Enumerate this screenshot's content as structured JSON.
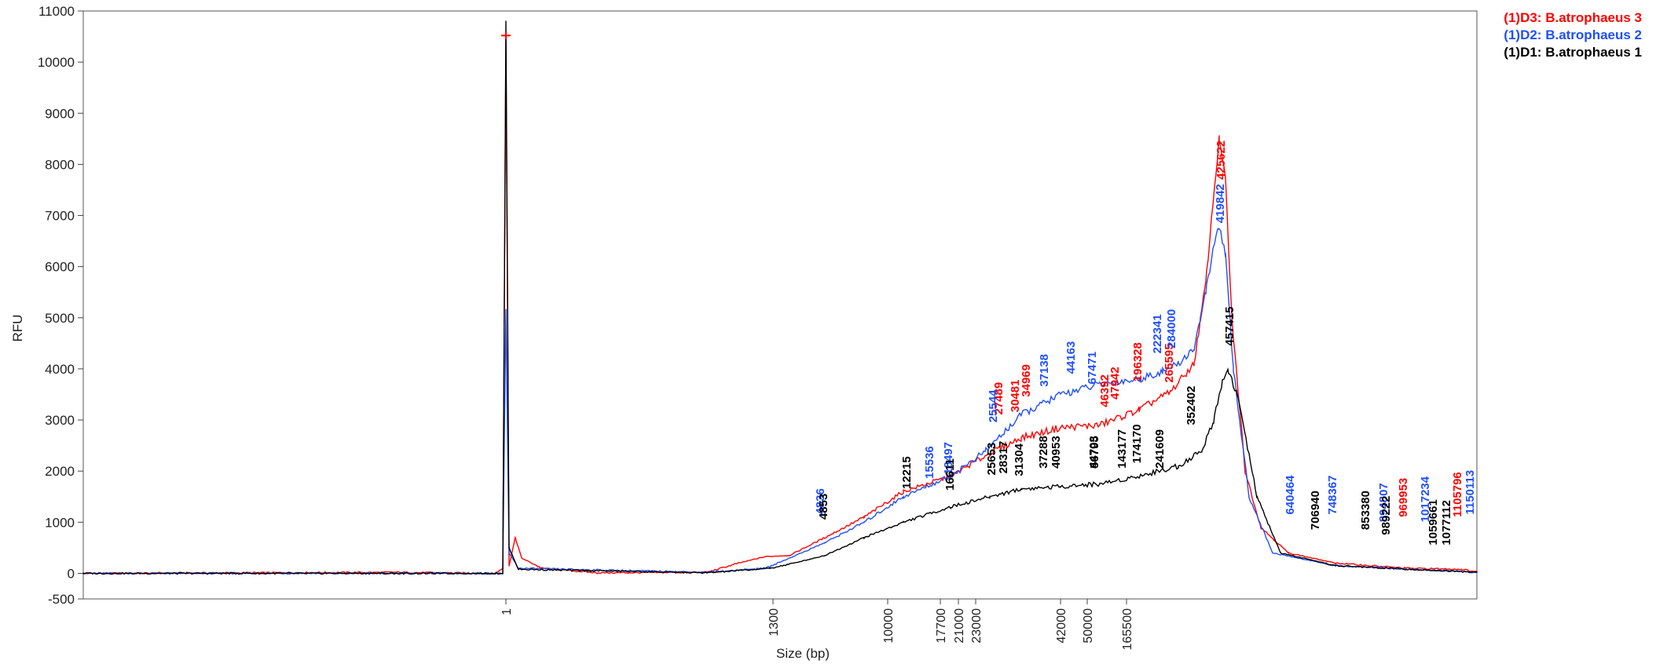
{
  "chart_data": {
    "type": "line",
    "title": "",
    "xlabel": "Size (bp)",
    "ylabel": "RFU",
    "ylim": [
      -500,
      11000
    ],
    "yticks": [
      -500,
      0,
      1000,
      2000,
      3000,
      4000,
      5000,
      6000,
      7000,
      8000,
      9000,
      10000,
      11000
    ],
    "grid": false,
    "legend_position": "top-right",
    "x_tick_labels": [
      "1",
      "1300",
      "10000",
      "17700",
      "21000",
      "23000",
      "42000",
      "50000",
      "165500"
    ],
    "series": [
      {
        "name": "(1)D3: B.atrophaeus 3",
        "color": "#ff0000",
        "peak_labels": [
          "425622",
          "27489",
          "30481",
          "34969",
          "46392",
          "47942",
          "196328",
          "265595",
          "969953",
          "1105796"
        ]
      },
      {
        "name": "(1)D2: B.atrophaeus 2",
        "color": "#1f4fff",
        "peak_labels": [
          "4836",
          "15536",
          "18497",
          "25544",
          "37138",
          "44163",
          "67471",
          "222341",
          "284000",
          "419842",
          "640464",
          "748367",
          "894807",
          "1017234",
          "1150113"
        ]
      },
      {
        "name": "(1)D1: B.atrophaeus 1",
        "color": "#000000",
        "peak_labels": [
          "4853",
          "12215",
          "16611",
          "25653",
          "28317",
          "31304",
          "37288",
          "40953",
          "44703",
          "56795",
          "143177",
          "174170",
          "241609",
          "352402",
          "457415",
          "706940",
          "853380",
          "989222",
          "1059661",
          "1077112"
        ]
      }
    ]
  }
}
